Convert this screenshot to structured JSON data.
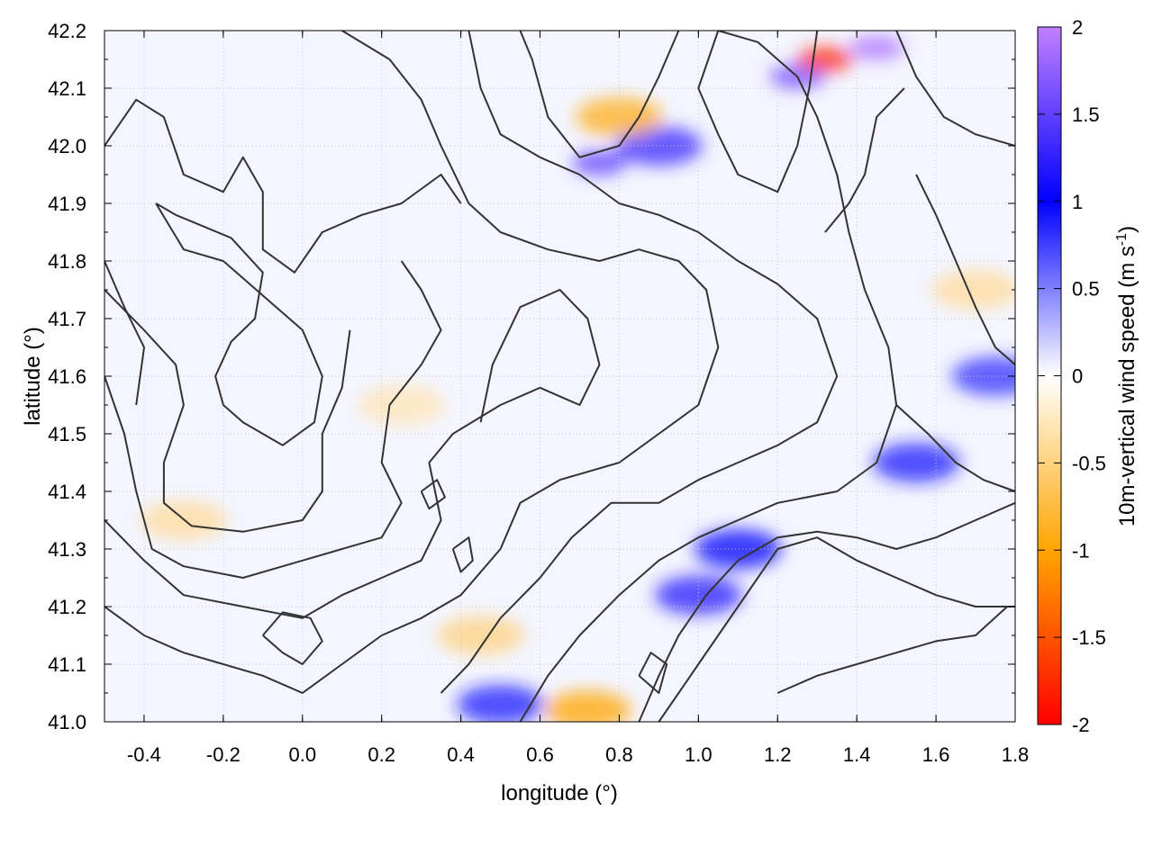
{
  "chart_data": {
    "type": "heatmap",
    "title": "",
    "xlabel": "longitude (°)",
    "ylabel": "latitude (°)",
    "colorbar_label": "10m-vertical wind speed (m s",
    "colorbar_label_sup": "-1",
    "colorbar_label_end": ")",
    "xlim": [
      -0.5,
      1.8
    ],
    "ylim": [
      41.0,
      42.2
    ],
    "xticks": [
      "-0.4",
      "-0.2",
      "0.0",
      "0.2",
      "0.4",
      "0.6",
      "0.8",
      "1.0",
      "1.2",
      "1.4",
      "1.6",
      "1.8"
    ],
    "yticks": [
      "41.0",
      "41.1",
      "41.2",
      "41.3",
      "41.4",
      "41.5",
      "41.6",
      "41.7",
      "41.8",
      "41.9",
      "42.0",
      "42.1",
      "42.2"
    ],
    "clim": [
      -2,
      2
    ],
    "cticks": [
      "-2",
      "-1.5",
      "-1",
      "-0.5",
      "0",
      "0.5",
      "1",
      "1.5",
      "2"
    ],
    "colormap": [
      "#ff0000",
      "#ffa500",
      "#ffffff",
      "#0000ff",
      "#c080ff"
    ],
    "grid": true,
    "contour_color": "#333333",
    "field_hotspots": [
      {
        "lon": 0.9,
        "lat": 42.0,
        "value": 1.3
      },
      {
        "lon": 1.25,
        "lat": 42.12,
        "value": 1.6
      },
      {
        "lon": 1.45,
        "lat": 42.17,
        "value": 1.9
      },
      {
        "lon": 0.75,
        "lat": 41.97,
        "value": 1.5
      },
      {
        "lon": 1.32,
        "lat": 42.15,
        "value": -1.8
      },
      {
        "lon": 0.8,
        "lat": 42.05,
        "value": -0.9
      },
      {
        "lon": 1.0,
        "lat": 41.22,
        "value": 1.2
      },
      {
        "lon": 1.1,
        "lat": 41.3,
        "value": 1.0
      },
      {
        "lon": 1.55,
        "lat": 41.45,
        "value": 0.9
      },
      {
        "lon": 0.5,
        "lat": 41.03,
        "value": 0.9
      },
      {
        "lon": 0.72,
        "lat": 41.02,
        "value": -1.0
      },
      {
        "lon": 0.45,
        "lat": 41.15,
        "value": -0.5
      },
      {
        "lon": -0.3,
        "lat": 41.35,
        "value": -0.4
      },
      {
        "lon": 0.25,
        "lat": 41.55,
        "value": -0.3
      },
      {
        "lon": 1.7,
        "lat": 41.75,
        "value": -0.4
      },
      {
        "lon": 1.75,
        "lat": 41.6,
        "value": 0.8
      }
    ],
    "contours": [
      {
        "level": "c1",
        "points": [
          [
            -0.5,
            42.0
          ],
          [
            -0.42,
            42.08
          ],
          [
            -0.35,
            42.05
          ],
          [
            -0.3,
            41.95
          ],
          [
            -0.2,
            41.92
          ],
          [
            -0.15,
            41.98
          ],
          [
            -0.1,
            41.92
          ],
          [
            -0.1,
            41.82
          ],
          [
            -0.02,
            41.78
          ],
          [
            0.05,
            41.85
          ],
          [
            0.15,
            41.88
          ],
          [
            0.25,
            41.9
          ],
          [
            0.35,
            41.95
          ],
          [
            0.4,
            41.9
          ]
        ]
      },
      {
        "level": "c2",
        "points": [
          [
            -0.37,
            41.9
          ],
          [
            -0.3,
            41.82
          ],
          [
            -0.2,
            41.8
          ],
          [
            -0.1,
            41.74
          ],
          [
            0.0,
            41.68
          ],
          [
            0.05,
            41.6
          ],
          [
            0.03,
            41.52
          ],
          [
            -0.05,
            41.48
          ],
          [
            -0.15,
            41.52
          ],
          [
            -0.2,
            41.55
          ],
          [
            -0.22,
            41.6
          ],
          [
            -0.18,
            41.66
          ],
          [
            -0.12,
            41.7
          ],
          [
            -0.1,
            41.78
          ],
          [
            -0.18,
            41.84
          ],
          [
            -0.25,
            41.86
          ],
          [
            -0.32,
            41.88
          ],
          [
            -0.37,
            41.9
          ]
        ]
      },
      {
        "level": "c3",
        "points": [
          [
            -0.5,
            41.75
          ],
          [
            -0.4,
            41.68
          ],
          [
            -0.32,
            41.62
          ],
          [
            -0.3,
            41.55
          ],
          [
            -0.35,
            41.45
          ],
          [
            -0.35,
            41.38
          ],
          [
            -0.28,
            41.34
          ],
          [
            -0.15,
            41.33
          ],
          [
            0.0,
            41.35
          ],
          [
            0.05,
            41.4
          ],
          [
            0.05,
            41.5
          ],
          [
            0.1,
            41.58
          ],
          [
            0.12,
            41.68
          ]
        ]
      },
      {
        "level": "c4",
        "points": [
          [
            -0.5,
            41.6
          ],
          [
            -0.45,
            41.5
          ],
          [
            -0.42,
            41.4
          ],
          [
            -0.38,
            41.3
          ],
          [
            -0.3,
            41.27
          ],
          [
            -0.15,
            41.25
          ],
          [
            0.0,
            41.28
          ],
          [
            0.1,
            41.3
          ],
          [
            0.2,
            41.32
          ],
          [
            0.25,
            41.38
          ],
          [
            0.2,
            41.45
          ],
          [
            0.22,
            41.55
          ],
          [
            0.3,
            41.62
          ],
          [
            0.35,
            41.68
          ],
          [
            0.3,
            41.75
          ],
          [
            0.25,
            41.8
          ]
        ]
      },
      {
        "level": "c5",
        "points": [
          [
            -0.5,
            41.35
          ],
          [
            -0.4,
            41.28
          ],
          [
            -0.3,
            41.22
          ],
          [
            -0.15,
            41.2
          ],
          [
            0.0,
            41.18
          ],
          [
            0.1,
            41.22
          ],
          [
            0.2,
            41.25
          ],
          [
            0.3,
            41.28
          ],
          [
            0.35,
            41.35
          ],
          [
            0.32,
            41.45
          ],
          [
            0.38,
            41.5
          ],
          [
            0.5,
            41.55
          ],
          [
            0.6,
            41.58
          ],
          [
            0.7,
            41.55
          ],
          [
            0.75,
            41.62
          ],
          [
            0.72,
            41.7
          ],
          [
            0.65,
            41.75
          ],
          [
            0.55,
            41.72
          ],
          [
            0.48,
            41.62
          ],
          [
            0.45,
            41.52
          ]
        ]
      },
      {
        "level": "c6",
        "points": [
          [
            -0.5,
            41.2
          ],
          [
            -0.4,
            41.15
          ],
          [
            -0.3,
            41.12
          ],
          [
            -0.2,
            41.1
          ],
          [
            -0.1,
            41.08
          ],
          [
            0.0,
            41.05
          ],
          [
            0.1,
            41.1
          ],
          [
            0.2,
            41.15
          ],
          [
            0.3,
            41.18
          ],
          [
            0.4,
            41.22
          ],
          [
            0.5,
            41.3
          ],
          [
            0.55,
            41.38
          ],
          [
            0.65,
            41.42
          ],
          [
            0.8,
            41.45
          ],
          [
            0.9,
            41.5
          ],
          [
            1.0,
            41.55
          ],
          [
            1.05,
            41.65
          ],
          [
            1.02,
            41.75
          ],
          [
            0.95,
            41.8
          ],
          [
            0.85,
            41.82
          ],
          [
            0.75,
            41.8
          ],
          [
            0.62,
            41.82
          ],
          [
            0.5,
            41.85
          ],
          [
            0.42,
            41.9
          ],
          [
            0.35,
            42.0
          ],
          [
            0.3,
            42.08
          ],
          [
            0.22,
            42.15
          ],
          [
            0.1,
            42.2
          ]
        ]
      },
      {
        "level": "c7",
        "points": [
          [
            0.35,
            41.05
          ],
          [
            0.42,
            41.1
          ],
          [
            0.5,
            41.18
          ],
          [
            0.6,
            41.25
          ],
          [
            0.68,
            41.32
          ],
          [
            0.78,
            41.38
          ],
          [
            0.9,
            41.38
          ],
          [
            1.0,
            41.42
          ],
          [
            1.1,
            41.45
          ],
          [
            1.2,
            41.48
          ],
          [
            1.3,
            41.52
          ],
          [
            1.35,
            41.6
          ],
          [
            1.3,
            41.7
          ],
          [
            1.2,
            41.76
          ],
          [
            1.1,
            41.8
          ],
          [
            1.0,
            41.85
          ],
          [
            0.9,
            41.88
          ],
          [
            0.8,
            41.9
          ],
          [
            0.7,
            41.95
          ],
          [
            0.6,
            41.98
          ],
          [
            0.5,
            42.02
          ],
          [
            0.45,
            42.1
          ],
          [
            0.42,
            42.2
          ]
        ]
      },
      {
        "level": "c8",
        "points": [
          [
            0.55,
            41.0
          ],
          [
            0.62,
            41.08
          ],
          [
            0.7,
            41.15
          ],
          [
            0.8,
            41.22
          ],
          [
            0.9,
            41.28
          ],
          [
            1.0,
            41.32
          ],
          [
            1.1,
            41.35
          ],
          [
            1.2,
            41.38
          ],
          [
            1.35,
            41.4
          ],
          [
            1.45,
            41.45
          ],
          [
            1.5,
            41.55
          ],
          [
            1.48,
            41.65
          ],
          [
            1.42,
            41.75
          ],
          [
            1.38,
            41.85
          ],
          [
            1.35,
            41.95
          ],
          [
            1.3,
            42.05
          ],
          [
            1.25,
            42.12
          ],
          [
            1.15,
            42.18
          ],
          [
            1.05,
            42.2
          ]
        ]
      },
      {
        "level": "c9",
        "points": [
          [
            0.85,
            41.0
          ],
          [
            0.9,
            41.08
          ],
          [
            0.95,
            41.15
          ],
          [
            1.02,
            41.22
          ],
          [
            1.1,
            41.28
          ],
          [
            1.2,
            41.32
          ],
          [
            1.3,
            41.33
          ],
          [
            1.4,
            41.32
          ],
          [
            1.5,
            41.3
          ],
          [
            1.6,
            41.32
          ],
          [
            1.7,
            41.35
          ],
          [
            1.8,
            41.38
          ]
        ]
      },
      {
        "level": "c10",
        "points": [
          [
            0.9,
            41.0
          ],
          [
            0.95,
            41.05
          ],
          [
            1.0,
            41.1
          ],
          [
            1.05,
            41.15
          ],
          [
            1.1,
            41.2
          ],
          [
            1.15,
            41.25
          ],
          [
            1.2,
            41.3
          ],
          [
            1.3,
            41.32
          ],
          [
            1.4,
            41.28
          ],
          [
            1.5,
            41.25
          ],
          [
            1.6,
            41.22
          ],
          [
            1.7,
            41.2
          ],
          [
            1.8,
            41.2
          ]
        ]
      },
      {
        "level": "c11",
        "points": [
          [
            1.2,
            41.05
          ],
          [
            1.3,
            41.08
          ],
          [
            1.4,
            41.1
          ],
          [
            1.5,
            41.12
          ],
          [
            1.6,
            41.14
          ],
          [
            1.7,
            41.15
          ],
          [
            1.78,
            41.2
          ]
        ]
      },
      {
        "level": "c12",
        "points": [
          [
            1.5,
            41.55
          ],
          [
            1.58,
            41.5
          ],
          [
            1.65,
            41.45
          ],
          [
            1.72,
            41.42
          ],
          [
            1.8,
            41.4
          ]
        ]
      },
      {
        "level": "c13",
        "points": [
          [
            1.55,
            41.95
          ],
          [
            1.6,
            41.88
          ],
          [
            1.65,
            41.8
          ],
          [
            1.7,
            41.72
          ],
          [
            1.75,
            41.65
          ],
          [
            1.8,
            41.62
          ]
        ]
      },
      {
        "level": "c14",
        "points": [
          [
            1.5,
            42.2
          ],
          [
            1.55,
            42.12
          ],
          [
            1.62,
            42.05
          ],
          [
            1.7,
            42.02
          ],
          [
            1.8,
            42.0
          ]
        ]
      },
      {
        "level": "c15",
        "points": [
          [
            0.95,
            42.2
          ],
          [
            0.9,
            42.12
          ],
          [
            0.85,
            42.05
          ],
          [
            0.8,
            42.0
          ],
          [
            0.7,
            41.98
          ],
          [
            0.62,
            42.05
          ],
          [
            0.58,
            42.15
          ],
          [
            0.55,
            42.2
          ]
        ]
      },
      {
        "level": "c16",
        "points": [
          [
            1.05,
            42.2
          ],
          [
            1.0,
            42.1
          ],
          [
            1.05,
            42.02
          ],
          [
            1.1,
            41.95
          ],
          [
            1.2,
            41.92
          ],
          [
            1.25,
            42.0
          ],
          [
            1.28,
            42.1
          ],
          [
            1.3,
            42.2
          ]
        ]
      },
      {
        "level": "c17",
        "points": [
          [
            -0.1,
            41.15
          ],
          [
            -0.05,
            41.12
          ],
          [
            0.0,
            41.1
          ],
          [
            0.05,
            41.14
          ],
          [
            0.02,
            41.18
          ],
          [
            -0.05,
            41.19
          ],
          [
            -0.1,
            41.15
          ]
        ]
      },
      {
        "level": "c18",
        "points": [
          [
            0.38,
            41.3
          ],
          [
            0.42,
            41.32
          ],
          [
            0.43,
            41.28
          ],
          [
            0.4,
            41.26
          ],
          [
            0.38,
            41.3
          ]
        ]
      },
      {
        "level": "c19",
        "points": [
          [
            0.3,
            41.4
          ],
          [
            0.34,
            41.42
          ],
          [
            0.36,
            41.39
          ],
          [
            0.32,
            41.37
          ],
          [
            0.3,
            41.4
          ]
        ]
      },
      {
        "level": "c20",
        "points": [
          [
            -0.5,
            41.8
          ],
          [
            -0.45,
            41.72
          ],
          [
            -0.4,
            41.65
          ],
          [
            -0.42,
            41.55
          ]
        ]
      },
      {
        "level": "c21",
        "points": [
          [
            0.85,
            41.08
          ],
          [
            0.88,
            41.12
          ],
          [
            0.92,
            41.1
          ],
          [
            0.9,
            41.05
          ],
          [
            0.85,
            41.08
          ]
        ]
      },
      {
        "level": "c22",
        "points": [
          [
            1.32,
            41.85
          ],
          [
            1.38,
            41.9
          ],
          [
            1.42,
            41.95
          ],
          [
            1.45,
            42.05
          ],
          [
            1.52,
            42.1
          ]
        ]
      }
    ]
  }
}
